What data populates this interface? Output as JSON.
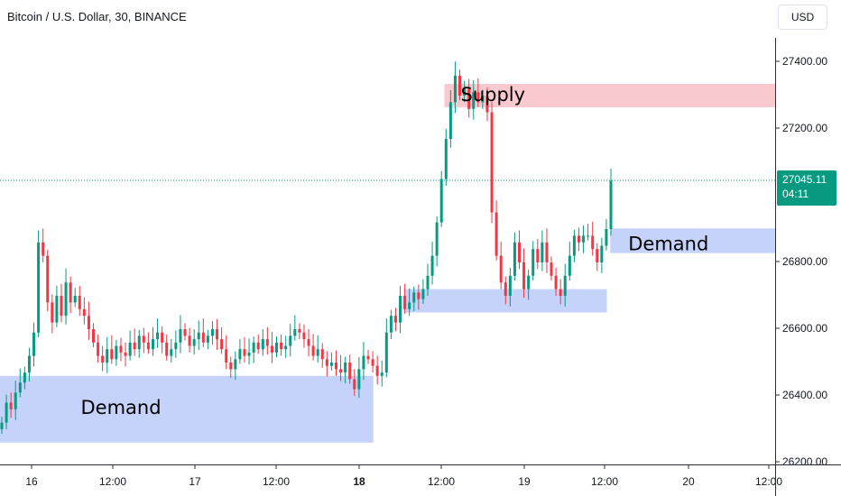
{
  "chart_data": {
    "type": "candlestick",
    "title": "Bitcoin / U.S. Dollar, 30, BINANCE",
    "currency": "USD",
    "y_ticks": [
      "27400.00",
      "27200.00",
      "26800.00",
      "26600.00",
      "26400.00",
      "26200.00"
    ],
    "x_ticks": [
      "16",
      "12:00",
      "17",
      "12:00",
      "18",
      "12:00",
      "19",
      "12:00",
      "20",
      "12:00"
    ],
    "last_price": "27045.11",
    "countdown": "04:11",
    "colors": {
      "up": "#089981",
      "down": "#f23645",
      "demand": "#c5d3fb",
      "supply": "#f9c9cf",
      "last_price": "#089981"
    },
    "zones": [
      {
        "label": "Supply",
        "type": "supply",
        "start": "2023-09-18T13:00",
        "end": "2023-09-20T16:00",
        "low": 27265,
        "high": 27335
      },
      {
        "label": "Demand",
        "type": "demand",
        "start": "2023-09-19T13:30",
        "end": "2023-09-20T16:00",
        "low": 26828,
        "high": 26902
      },
      {
        "label": "",
        "type": "demand",
        "start": "2023-09-18T07:00",
        "end": "2023-09-19T13:00",
        "low": 26650,
        "high": 26720
      },
      {
        "label": "Demand",
        "type": "demand",
        "start": "2023-09-15T15:00",
        "end": "2023-09-18T02:30",
        "low": 26260,
        "high": 26460
      }
    ],
    "candles_close": [
      26320,
      26380,
      26360,
      26410,
      26440,
      26470,
      26520,
      26590,
      26860,
      26820,
      26680,
      26620,
      26700,
      26640,
      26740,
      26680,
      26700,
      26660,
      26640,
      26600,
      26560,
      26520,
      26500,
      26540,
      26510,
      26550,
      26530,
      26520,
      26560,
      26540,
      26580,
      26560,
      26540,
      26570,
      26590,
      26560,
      26520,
      26540,
      26560,
      26600,
      26580,
      26550,
      26570,
      26590,
      26560,
      26580,
      26600,
      26570,
      26540,
      26500,
      26480,
      26510,
      26540,
      26520,
      26530,
      26560,
      26540,
      26570,
      26550,
      26530,
      26560,
      26540,
      26550,
      26580,
      26600,
      26590,
      26570,
      26550,
      26520,
      26540,
      26510,
      26490,
      26500,
      26480,
      26470,
      26500,
      26450,
      26420,
      26480,
      26520,
      26510,
      26490,
      26460,
      26470,
      26590,
      26640,
      26620,
      26700,
      26660,
      26680,
      26710,
      26690,
      26720,
      26760,
      26820,
      26920,
      27050,
      27170,
      27280,
      27360,
      27300,
      27320,
      27260,
      27310,
      27280,
      27300,
      27250,
      26950,
      26820,
      26740,
      26700,
      26760,
      26860,
      26800,
      26720,
      26760,
      26840,
      26800,
      26860,
      26800,
      26760,
      26720,
      26700,
      26760,
      26820,
      26880,
      26860,
      26880,
      26880,
      26840,
      26800,
      26850,
      26900,
      27045
    ]
  }
}
